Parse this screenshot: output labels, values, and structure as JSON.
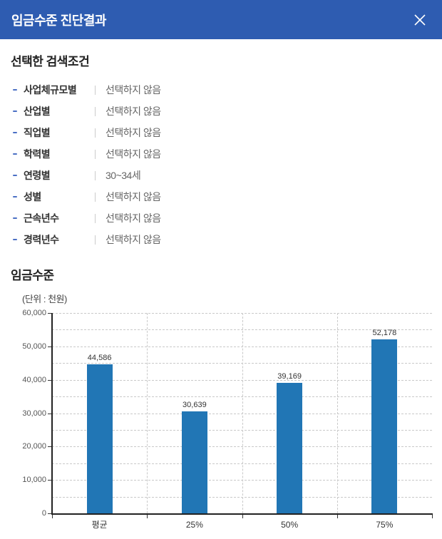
{
  "header": {
    "title": "임금수준 진단결과"
  },
  "search_conditions": {
    "title": "선택한 검색조건",
    "items": [
      {
        "label": "사업체규모별",
        "value": "선택하지 않음"
      },
      {
        "label": "산업별",
        "value": "선택하지 않음"
      },
      {
        "label": "직업별",
        "value": "선택하지 않음"
      },
      {
        "label": "학력별",
        "value": "선택하지 않음"
      },
      {
        "label": "연령별",
        "value": "30~34세"
      },
      {
        "label": "성별",
        "value": "선택하지 않음"
      },
      {
        "label": "근속년수",
        "value": "선택하지 않음"
      },
      {
        "label": "경력년수",
        "value": "선택하지 않음"
      }
    ]
  },
  "wage_section": {
    "title": "임금수준",
    "unit_label": "(단위 : 천원)"
  },
  "chart_data": {
    "type": "bar",
    "title": "임금수준",
    "unit": "천원",
    "categories": [
      "평균",
      "25%",
      "50%",
      "75%"
    ],
    "values": [
      44586,
      30639,
      39169,
      52178
    ],
    "value_labels": [
      "44,586",
      "30,639",
      "39,169",
      "52,178"
    ],
    "ylim": [
      0,
      60000
    ],
    "ytick_interval": 10000,
    "grid_interval": 5000,
    "grid": true,
    "legend": false,
    "bar_color": "#2176b5"
  },
  "colors": {
    "header_bg": "#2e5cb1",
    "bar": "#2176b5",
    "bullet": "#4a6fc4",
    "gridline": "#c9c9c9"
  }
}
